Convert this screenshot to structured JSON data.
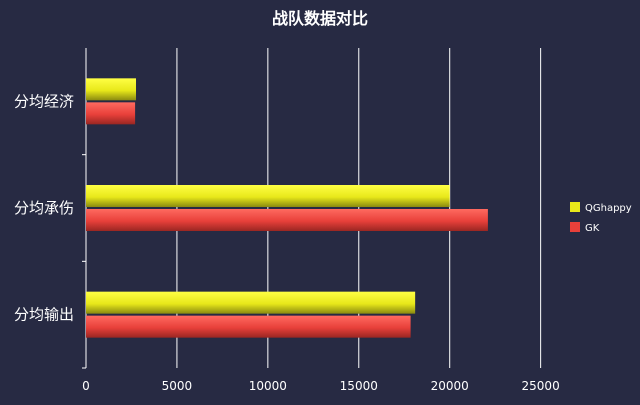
{
  "chart_data": {
    "type": "bar",
    "orientation": "horizontal",
    "title": "战队数据对比",
    "categories": [
      "分均经济",
      "分均承伤",
      "分均输出"
    ],
    "series": [
      {
        "name": "QGhappy",
        "values": [
          2750,
          20000,
          18100
        ],
        "color": "#e8e81a"
      },
      {
        "name": "GK",
        "values": [
          2700,
          22100,
          17850
        ],
        "color": "#e8403a"
      }
    ],
    "xlim": [
      0,
      27000
    ],
    "xticks": [
      0,
      5000,
      10000,
      15000,
      20000,
      25000
    ],
    "xtick_labels": [
      "0",
      "5000",
      "10000",
      "15000",
      "20000",
      "25000"
    ],
    "grid": true,
    "legend_position": "right"
  }
}
